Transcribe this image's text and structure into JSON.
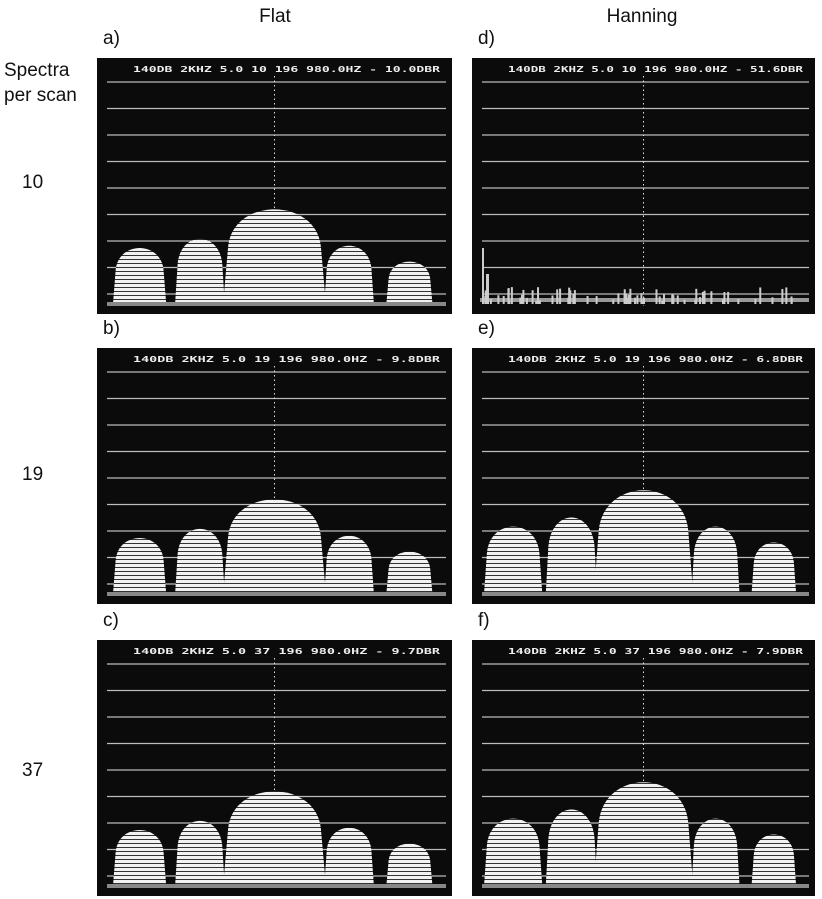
{
  "column_headers": [
    "Flat",
    "Hanning"
  ],
  "row_header": [
    "Spectra",
    "per scan"
  ],
  "rows": [
    {
      "label": "10",
      "panels": [
        {
          "label": "a)",
          "readout": "140DB   2KHZ  5.0   10    196    980.0HZ - 10.0DBR"
        },
        {
          "label": "d)",
          "readout": "140DB  2KHZ  5.0   10    196    980.0HZ - 51.6DBR"
        }
      ]
    },
    {
      "label": "19",
      "panels": [
        {
          "label": "b)",
          "readout": "140DB   2KHZ  5.0   19    196    980.0HZ -  9.8DBR"
        },
        {
          "label": "e)",
          "readout": "140DB  2KHZ  5.0   19    196    980.0HZ -  6.8DBR"
        }
      ]
    },
    {
      "label": "37",
      "panels": [
        {
          "label": "c)",
          "readout": "140DB   2KHZ  5.0   37    196    980.0HZ -  9.7DBR"
        },
        {
          "label": "f)",
          "readout": "140DB  2KHZ  5.0   37    196    980.0HZ -  7.9DBR"
        }
      ]
    }
  ]
}
